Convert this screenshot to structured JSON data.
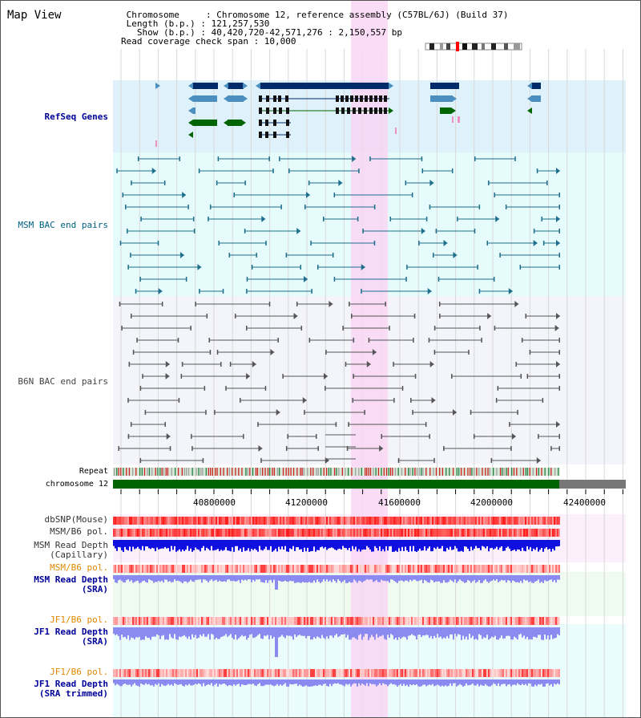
{
  "header": {
    "title": "Map View",
    "info_lines": [
      " Chromosome     : Chromosome 12, reference assembly (C57BL/6J) (Build 37)",
      " Length (b.p.) : 121,257,530",
      "   Show (b.p.) : 40,420,720-42,571,276 : 2,150,557 bp",
      "Read coverage check span : 10,000"
    ]
  },
  "tracks": {
    "refseq": "RefSeq Genes",
    "msm_bac": "MSM BAC end pairs",
    "b6n_bac": "B6N BAC end pairs",
    "repeat": "Repeat",
    "chromosome": "chromosome 12",
    "dbsnp": "dbSNP(Mouse)",
    "msm_b6_pol_1": "MSM/B6 pol.",
    "msm_depth_cap_1": "MSM Read Depth",
    "msm_depth_cap_2": "(Capillary)",
    "msm_b6_pol_2": "MSM/B6 pol.",
    "msm_depth_sra_1": "MSM Read Depth",
    "msm_depth_sra_2": "(SRA)",
    "jf1_b6_pol_1": "JF1/B6 pol.",
    "jf1_depth_sra_1": "JF1 Read Depth",
    "jf1_depth_sra_2": "(SRA)",
    "jf1_b6_pol_2": "JF1/B6 pol.",
    "jf1_depth_trim_1": "JF1 Read Depth",
    "jf1_depth_trim_2": "(SRA trimmed)"
  },
  "axis": {
    "ticks": [
      "40800000",
      "41200000",
      "41600000",
      "42000000",
      "42400000"
    ]
  },
  "colors": {
    "refseq_bg": "#dff2fb",
    "msm_bg": "#e6fcfc",
    "b6n_bg": "#f3f5fb",
    "highlight": "#f9d6f4",
    "gene_dark": "#002b6b",
    "gene_mid": "#4a8fbf",
    "gene_green": "#006400",
    "msm_line": "#1e6e8c",
    "b6n_line": "#555555",
    "depth_blue": "#1010e0",
    "depth_light": "#8a8af0",
    "label_blue": "#000099",
    "label_teal": "#006080",
    "label_orange": "#e08800"
  }
}
